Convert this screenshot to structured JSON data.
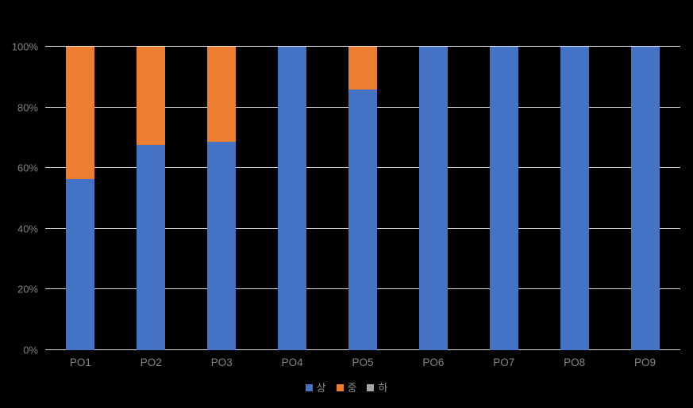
{
  "chart_data": {
    "type": "bar",
    "stacked": true,
    "percent_stacked": true,
    "title": "",
    "xlabel": "",
    "ylabel": "",
    "categories": [
      "PO1",
      "PO2",
      "PO3",
      "PO4",
      "PO5",
      "PO6",
      "PO7",
      "PO8",
      "PO9"
    ],
    "series": [
      {
        "name": "상",
        "color": "#4472c4",
        "values": [
          56.5,
          67.6,
          68.7,
          100,
          85.9,
          100,
          100,
          100,
          100
        ]
      },
      {
        "name": "중",
        "color": "#ed7d31",
        "values": [
          43.5,
          32.4,
          31.3,
          0,
          14.1,
          0,
          0,
          0,
          0
        ]
      },
      {
        "name": "하",
        "color": "#a5a5a5",
        "values": [
          0,
          0,
          0,
          0,
          0,
          0,
          0,
          0,
          0
        ]
      }
    ],
    "ylim": [
      0,
      100
    ],
    "yticks": [
      {
        "value": 0,
        "label": "0%"
      },
      {
        "value": 20,
        "label": "20%"
      },
      {
        "value": 40,
        "label": "40%"
      },
      {
        "value": 60,
        "label": "60%"
      },
      {
        "value": 80,
        "label": "80%"
      },
      {
        "value": 100,
        "label": "100%"
      }
    ],
    "grid": true,
    "legend_position": "bottom",
    "colors": {
      "background": "#000000",
      "gridline": "#d9d9d9",
      "axis_label": "#808080",
      "legend_label": "#8a8a8a"
    }
  }
}
